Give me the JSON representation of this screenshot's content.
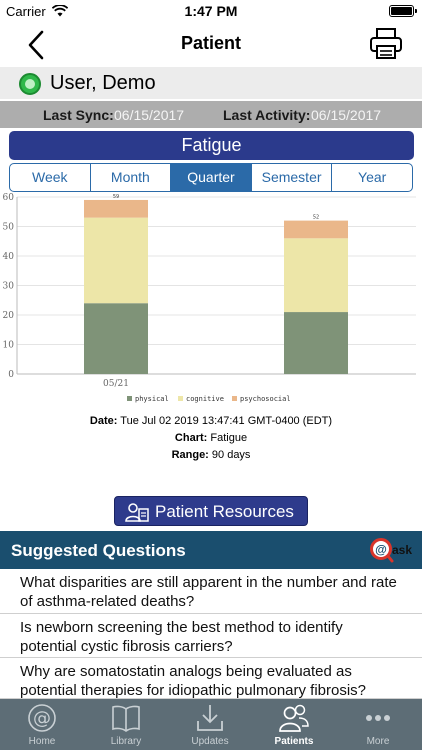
{
  "status_bar": {
    "carrier": "Carrier",
    "time": "1:47 PM"
  },
  "nav": {
    "title": "Patient",
    "back_icon": "chevron-left-icon",
    "print_icon": "printer-icon"
  },
  "user": {
    "name": "User, Demo",
    "status_color": "#2fb84a"
  },
  "sync": {
    "last_sync_label": "Last Sync:",
    "last_sync_value": "06/15/2017",
    "last_activity_label": "Last Activity:",
    "last_activity_value": "06/15/2017"
  },
  "metric_title": "Fatigue",
  "segments": [
    {
      "label": "Week",
      "active": false
    },
    {
      "label": "Month",
      "active": false
    },
    {
      "label": "Quarter",
      "active": true
    },
    {
      "label": "Semester",
      "active": false
    },
    {
      "label": "Year",
      "active": false
    }
  ],
  "chart_data": {
    "type": "bar",
    "stacked": true,
    "categories": [
      "05/21",
      ""
    ],
    "series": [
      {
        "name": "physical",
        "color": "#7f9378",
        "values": [
          24,
          21
        ]
      },
      {
        "name": "cognitive",
        "color": "#ede6a8",
        "values": [
          29,
          25
        ]
      },
      {
        "name": "psychosocial",
        "color": "#eab78a",
        "values": [
          6,
          6
        ]
      }
    ],
    "totals": [
      "59",
      "52"
    ],
    "ylim": [
      0,
      60
    ],
    "yticks": [
      0,
      10,
      20,
      30,
      40,
      50,
      60
    ],
    "legend_position": "bottom",
    "grid": true
  },
  "info": {
    "date_label": "Date:",
    "date_value": "Tue Jul 02 2019 13:47:41 GMT-0400 (EDT)",
    "chart_label": "Chart:",
    "chart_value": "Fatigue",
    "range_label": "Range:",
    "range_value": "90 days"
  },
  "resources_button": {
    "label": "Patient Resources",
    "icon": "patient-resources-icon"
  },
  "suggested": {
    "title": "Suggested Questions",
    "ask_logo": "ask",
    "questions": [
      "What disparities are still apparent in the number and rate of asthma-related deaths?",
      "Is newborn screening the best method to identify potential cystic fibrosis carriers?",
      "Why are somatostatin analogs being evaluated as potential therapies for idiopathic pulmonary fibrosis?"
    ]
  },
  "tabs": [
    {
      "label": "Home",
      "icon": "at-sign-icon",
      "active": false
    },
    {
      "label": "Library",
      "icon": "book-icon",
      "active": false
    },
    {
      "label": "Updates",
      "icon": "download-icon",
      "active": false
    },
    {
      "label": "Patients",
      "icon": "people-icon",
      "active": true
    },
    {
      "label": "More",
      "icon": "more-dots-icon",
      "active": false
    }
  ]
}
